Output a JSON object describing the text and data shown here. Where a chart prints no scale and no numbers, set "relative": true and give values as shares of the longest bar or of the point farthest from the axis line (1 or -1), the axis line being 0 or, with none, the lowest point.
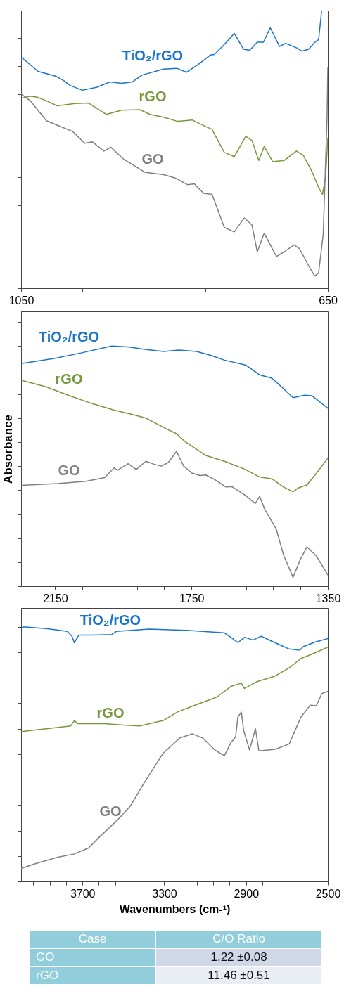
{
  "chart_data": [
    {
      "type": "line",
      "relative": true,
      "xlim": [
        1050,
        650
      ],
      "xticks": [
        1050,
        {
          "value": 970,
          "label": null
        },
        {
          "value": 890,
          "label": null
        },
        {
          "value": 810,
          "label": null
        },
        {
          "value": 730,
          "label": null
        },
        650
      ],
      "grid": false,
      "series": [
        {
          "name": "TiO₂/rGO",
          "color": "#1a74c8",
          "x": [
            1050,
            1028,
            1005,
            994,
            986,
            970,
            951,
            934,
            919,
            905,
            892,
            864,
            847,
            834,
            817,
            803,
            798,
            785,
            772,
            760,
            752,
            742,
            734,
            725,
            713,
            705,
            690,
            684,
            675,
            667,
            662,
            658
          ],
          "values": [
            0.833,
            0.781,
            0.764,
            0.747,
            0.73,
            0.713,
            0.724,
            0.743,
            0.738,
            0.743,
            0.768,
            0.789,
            0.792,
            0.778,
            0.81,
            0.84,
            0.842,
            0.878,
            0.918,
            0.861,
            0.857,
            0.886,
            0.886,
            0.938,
            0.871,
            0.882,
            0.865,
            0.854,
            0.861,
            0.886,
            0.895,
            1.0
          ]
        },
        {
          "name": "rGO",
          "color": "#76973a",
          "x": [
            1050,
            1038,
            1029,
            1017,
            1003,
            980,
            962,
            939,
            919,
            895,
            882,
            864,
            846,
            827,
            809,
            801,
            785,
            772,
            757,
            749,
            740,
            733,
            722,
            707,
            691,
            682,
            671,
            662,
            657,
            653,
            650
          ],
          "values": [
            0.684,
            0.692,
            0.688,
            0.675,
            0.657,
            0.665,
            0.667,
            0.626,
            0.641,
            0.643,
            0.626,
            0.616,
            0.601,
            0.606,
            0.582,
            0.572,
            0.489,
            0.474,
            0.547,
            0.532,
            0.46,
            0.511,
            0.456,
            0.46,
            0.494,
            0.479,
            0.422,
            0.363,
            0.338,
            0.397,
            0.54
          ]
        },
        {
          "name": "GO",
          "color": "#7f7f7f",
          "x": [
            1050,
            1038,
            1028,
            1017,
            1002,
            983,
            967,
            957,
            942,
            933,
            916,
            901,
            889,
            864,
            849,
            833,
            824,
            812,
            801,
            785,
            772,
            759,
            749,
            742,
            733,
            717,
            707,
            694,
            687,
            674,
            667,
            662,
            656,
            651,
            650
          ],
          "values": [
            0.7,
            0.675,
            0.641,
            0.603,
            0.586,
            0.565,
            0.522,
            0.527,
            0.494,
            0.508,
            0.464,
            0.439,
            0.418,
            0.409,
            0.397,
            0.373,
            0.376,
            0.342,
            0.338,
            0.219,
            0.203,
            0.253,
            0.228,
            0.131,
            0.198,
            0.114,
            0.131,
            0.156,
            0.143,
            0.076,
            0.044,
            0.055,
            0.194,
            0.616,
            0.793
          ]
        }
      ]
    },
    {
      "type": "line",
      "relative": true,
      "ylabel": "Absorbance",
      "xlim": [
        2250,
        1350
      ],
      "xticks": [
        2150,
        {
          "value": 2070,
          "label": null
        },
        {
          "value": 1990,
          "label": null
        },
        {
          "value": 1910,
          "label": null
        },
        {
          "value": 1830,
          "label": null
        },
        1750,
        {
          "value": 1670,
          "label": null
        },
        {
          "value": 1590,
          "label": null
        },
        {
          "value": 1510,
          "label": null
        },
        {
          "value": 1430,
          "label": null
        },
        1350
      ],
      "grid": false,
      "series": [
        {
          "name": "TiO₂/rGO",
          "color": "#1a74c8",
          "x": [
            2250,
            2150,
            2074,
            1984,
            1936,
            1887,
            1832,
            1787,
            1735,
            1694,
            1653,
            1590,
            1549,
            1514,
            1480,
            1452,
            1418,
            1397,
            1350
          ],
          "values": [
            0.927,
            0.949,
            0.971,
            1.0,
            0.996,
            0.986,
            0.977,
            0.983,
            0.977,
            0.961,
            0.941,
            0.92,
            0.879,
            0.866,
            0.822,
            0.785,
            0.795,
            0.793,
            0.741
          ]
        },
        {
          "name": "rGO",
          "color": "#76973a",
          "x": [
            2250,
            2177,
            2108,
            2039,
            1977,
            1929,
            1884,
            1832,
            1794,
            1770,
            1708,
            1653,
            1597,
            1549,
            1514,
            1480,
            1452,
            1438,
            1411,
            1383,
            1350
          ],
          "values": [
            0.857,
            0.83,
            0.793,
            0.759,
            0.733,
            0.717,
            0.7,
            0.661,
            0.635,
            0.603,
            0.544,
            0.52,
            0.489,
            0.454,
            0.447,
            0.413,
            0.393,
            0.408,
            0.422,
            0.471,
            0.533
          ]
        },
        {
          "name": "GO",
          "color": "#7f7f7f",
          "x": [
            2250,
            2143,
            2060,
            2005,
            1977,
            1967,
            1936,
            1912,
            1884,
            1860,
            1839,
            1818,
            1794,
            1773,
            1749,
            1725,
            1708,
            1680,
            1649,
            1632,
            1590,
            1563,
            1550,
            1535,
            1501,
            1480,
            1452,
            1431,
            1411,
            1383,
            1350
          ],
          "values": [
            0.42,
            0.427,
            0.437,
            0.452,
            0.493,
            0.483,
            0.51,
            0.486,
            0.52,
            0.508,
            0.5,
            0.515,
            0.561,
            0.5,
            0.471,
            0.461,
            0.463,
            0.442,
            0.413,
            0.415,
            0.376,
            0.344,
            0.374,
            0.32,
            0.237,
            0.13,
            0.037,
            0.11,
            0.164,
            0.125,
            0.047
          ]
        }
      ]
    },
    {
      "type": "line",
      "relative": true,
      "xlabel": "Wavenumbers (cm-¹)",
      "xlim": [
        4000,
        2500
      ],
      "xticks": [
        {
          "value": 3940,
          "label": null
        },
        {
          "value": 3860,
          "label": null
        },
        {
          "value": 3780,
          "label": null
        },
        3700,
        {
          "value": 3620,
          "label": null
        },
        {
          "value": 3540,
          "label": null
        },
        {
          "value": 3460,
          "label": null
        },
        {
          "value": 3380,
          "label": null
        },
        3300,
        {
          "value": 3220,
          "label": null
        },
        {
          "value": 3140,
          "label": null
        },
        {
          "value": 3060,
          "label": null
        },
        {
          "value": 2980,
          "label": null
        },
        2900,
        {
          "value": 2820,
          "label": null
        },
        {
          "value": 2740,
          "label": null
        },
        {
          "value": 2660,
          "label": null
        },
        {
          "value": 2580,
          "label": null
        },
        2500
      ],
      "grid": false,
      "series": [
        {
          "name": "TiO₂/rGO",
          "color": "#1a74c8",
          "x": [
            4000,
            3991,
            3877,
            3774,
            3751,
            3740,
            3717,
            3648,
            3557,
            3534,
            3374,
            3191,
            3008,
            2974,
            2940,
            2906,
            2866,
            2826,
            2734,
            2689,
            2637,
            2620,
            2563,
            2500
          ],
          "values": [
            0.995,
            1.0,
            0.993,
            0.982,
            0.963,
            0.938,
            0.968,
            0.968,
            0.97,
            0.982,
            0.991,
            0.986,
            0.977,
            0.959,
            0.938,
            0.959,
            0.948,
            0.963,
            0.929,
            0.913,
            0.908,
            0.922,
            0.94,
            0.954
          ]
        },
        {
          "name": "rGO",
          "color": "#76973a",
          "x": [
            4000,
            3877,
            3757,
            3740,
            3723,
            3591,
            3500,
            3420,
            3305,
            3237,
            3134,
            3043,
            2974,
            2923,
            2908,
            2849,
            2757,
            2689,
            2631,
            2574,
            2500
          ],
          "values": [
            0.589,
            0.6,
            0.611,
            0.632,
            0.62,
            0.62,
            0.614,
            0.611,
            0.632,
            0.665,
            0.697,
            0.724,
            0.766,
            0.779,
            0.758,
            0.784,
            0.807,
            0.839,
            0.876,
            0.894,
            0.92
          ]
        },
        {
          "name": "GO",
          "color": "#7f7f7f",
          "x": [
            4000,
            3934,
            3820,
            3740,
            3671,
            3614,
            3534,
            3465,
            3397,
            3305,
            3225,
            3163,
            3111,
            3054,
            3006,
            2974,
            2951,
            2940,
            2923,
            2911,
            2883,
            2854,
            2837,
            2757,
            2689,
            2631,
            2586,
            2557,
            2529,
            2500
          ],
          "values": [
            0.051,
            0.069,
            0.095,
            0.108,
            0.131,
            0.177,
            0.237,
            0.297,
            0.389,
            0.504,
            0.563,
            0.58,
            0.563,
            0.517,
            0.494,
            0.545,
            0.568,
            0.646,
            0.665,
            0.591,
            0.517,
            0.6,
            0.513,
            0.519,
            0.54,
            0.646,
            0.692,
            0.69,
            0.738,
            0.747
          ]
        }
      ]
    },
    {
      "type": "other",
      "annotations": [
        "Case",
        "C/O Ratio",
        "GO",
        "1.22 ±0.08",
        "rGO",
        "11.46 ±0.51"
      ]
    }
  ]
}
